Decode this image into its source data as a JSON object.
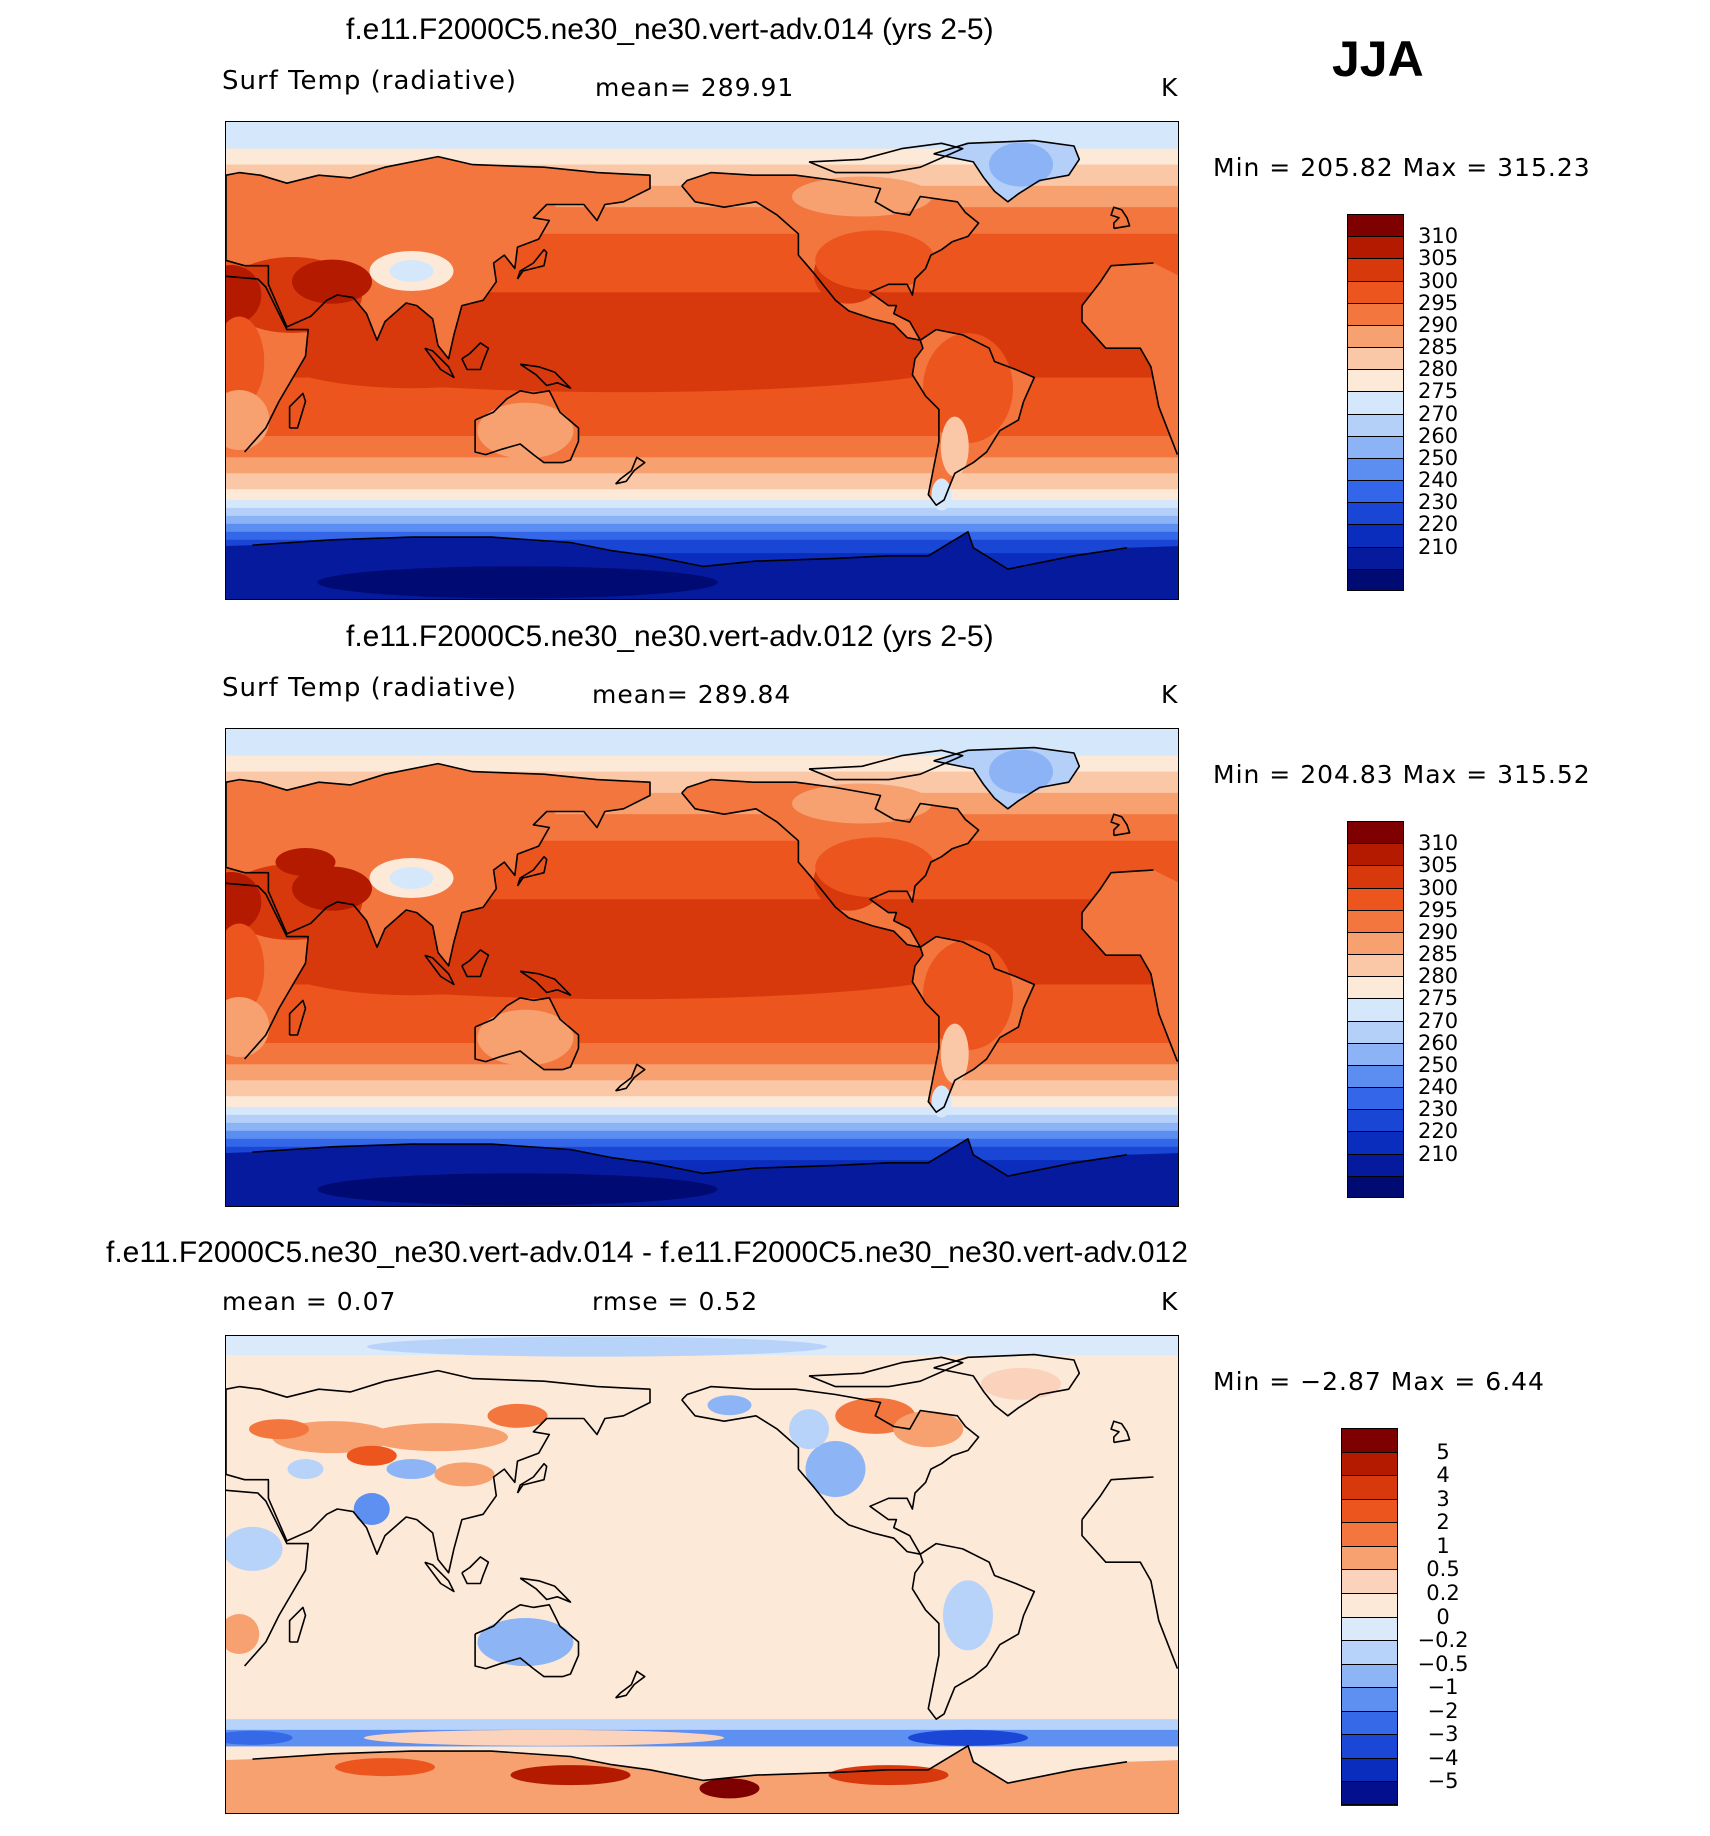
{
  "season": "JJA",
  "colors": {
    "warm_scale": [
      "#7f0000",
      "#b31a00",
      "#d8390c",
      "#ec551d",
      "#f3763f",
      "#f7a070",
      "#fbc8a7",
      "#fde9d8",
      "#d5e8fb",
      "#b4d0f9",
      "#8bb3f5",
      "#5b8ef0",
      "#3366e8",
      "#1a46d6",
      "#0b2dbd",
      "#051a9c",
      "#000a73"
    ],
    "diff_scale": [
      "#7f0000",
      "#b31a00",
      "#d8390c",
      "#ec551d",
      "#f3763f",
      "#f7a070",
      "#fbd3bc",
      "#fde9d8",
      "#dbeafb",
      "#b8d3f9",
      "#8db5f5",
      "#5d90f0",
      "#3569e8",
      "#1a47d6",
      "#0b2dbd",
      "#030f8c"
    ],
    "coast": "#000000"
  },
  "panels": [
    {
      "title": "f.e11.F2000C5.ne30_ne30.vert-adv.014 (yrs 2-5)",
      "left_label": "Surf Temp (radiative)",
      "mean_text": "mean=  289.91",
      "units": "K",
      "minmax_text": "Min  =  205.82  Max  =  315.23",
      "legend_labels": [
        "310",
        "305",
        "300",
        "295",
        "290",
        "285",
        "280",
        "275",
        "270",
        "260",
        "250",
        "240",
        "230",
        "220",
        "210"
      ]
    },
    {
      "title": "f.e11.F2000C5.ne30_ne30.vert-adv.012 (yrs 2-5)",
      "left_label": "Surf Temp (radiative)",
      "mean_text": "mean=  289.84",
      "units": "K",
      "minmax_text": "Min  =  204.83  Max  =  315.52",
      "legend_labels": [
        "310",
        "305",
        "300",
        "295",
        "290",
        "285",
        "280",
        "275",
        "270",
        "260",
        "250",
        "240",
        "230",
        "220",
        "210"
      ]
    },
    {
      "title": "f.e11.F2000C5.ne30_ne30.vert-adv.014 - f.e11.F2000C5.ne30_ne30.vert-adv.012",
      "mean_text": "mean =     0.07",
      "rmse_text": "rmse =     0.52",
      "units": "K",
      "minmax_text": "Min  =    −2.87  Max  =     6.44",
      "legend_labels": [
        "5",
        "4",
        "3",
        "2",
        "1",
        "0.5",
        "0.2",
        "0",
        "−0.2",
        "−0.5",
        "−1",
        "−2",
        "−3",
        "−4",
        "−5"
      ]
    }
  ],
  "chart_data": [
    {
      "type": "heatmap",
      "title": "f.e11.F2000C5.ne30_ne30.vert-adv.014 (yrs 2-5)",
      "variable": "Surf Temp (radiative)",
      "units": "K",
      "mean": 289.91,
      "min": 205.82,
      "max": 315.23,
      "contour_levels": [
        210,
        220,
        230,
        240,
        250,
        260,
        270,
        275,
        280,
        285,
        290,
        295,
        300,
        305,
        310
      ],
      "projection": "cylindrical equidistant, Pacific-centered"
    },
    {
      "type": "heatmap",
      "title": "f.e11.F2000C5.ne30_ne30.vert-adv.012 (yrs 2-5)",
      "variable": "Surf Temp (radiative)",
      "units": "K",
      "mean": 289.84,
      "min": 204.83,
      "max": 315.52,
      "contour_levels": [
        210,
        220,
        230,
        240,
        250,
        260,
        270,
        275,
        280,
        285,
        290,
        295,
        300,
        305,
        310
      ],
      "projection": "cylindrical equidistant, Pacific-centered"
    },
    {
      "type": "heatmap",
      "title": "f.e11.F2000C5.ne30_ne30.vert-adv.014 - f.e11.F2000C5.ne30_ne30.vert-adv.012",
      "units": "K",
      "mean": 0.07,
      "rmse": 0.52,
      "min": -2.87,
      "max": 6.44,
      "contour_levels": [
        -5,
        -4,
        -3,
        -2,
        -1,
        -0.5,
        -0.2,
        0,
        0.2,
        0.5,
        1,
        2,
        3,
        4,
        5
      ],
      "projection": "cylindrical equidistant, Pacific-centered"
    }
  ]
}
